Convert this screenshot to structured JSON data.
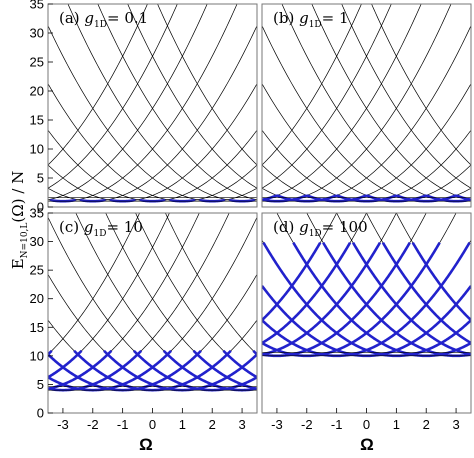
{
  "figure": {
    "ylabel_main": "E",
    "ylabel_sub": "N=10,L",
    "ylabel_rest": "(Ω) / N",
    "xlabel": "Ω",
    "colors": {
      "black": "#000000",
      "blue": "#2222cc",
      "frame": "#777777"
    }
  },
  "chart_data": [
    {
      "type": "line",
      "panel": "a",
      "label_prefix": "(a)",
      "label_symbol": "g",
      "label_sub": "1D",
      "label_value": "= 0.1",
      "xlim": [
        -3.5,
        3.5
      ],
      "ylim": [
        0,
        35
      ],
      "x_ticks": [],
      "y_ticks": [
        "0",
        "5",
        "10",
        "15",
        "20",
        "25",
        "30",
        "35"
      ],
      "curves": "E(Ω) = (Ω - k)^2 + 1, k = -6 … 6 (integers)",
      "blue_band": [
        0,
        1.2
      ]
    },
    {
      "type": "line",
      "panel": "b",
      "label_prefix": "(b)",
      "label_symbol": "g",
      "label_sub": "1D",
      "label_value": "= 1",
      "xlim": [
        -3.5,
        3.5
      ],
      "ylim": [
        0,
        35
      ],
      "x_ticks": [],
      "y_ticks": [],
      "curves": "E(Ω) = (Ω - k)^2 + 1, k = -6 … 6 (integers)",
      "blue_band": [
        0,
        2
      ]
    },
    {
      "type": "line",
      "panel": "c",
      "label_prefix": "(c)",
      "label_symbol": "g",
      "label_sub": "1D",
      "label_value": "= 10",
      "xlim": [
        -3.5,
        3.5
      ],
      "ylim": [
        0,
        35
      ],
      "x_ticks": [
        "-3",
        "-2",
        "-1",
        "0",
        "1",
        "2",
        "3"
      ],
      "y_ticks": [
        "0",
        "5",
        "10",
        "15",
        "20",
        "25",
        "30",
        "35"
      ],
      "curves": "E(Ω) = (Ω - k)^2 + 4, k = -6 … 6 (integers)",
      "blue_band": [
        4,
        11
      ]
    },
    {
      "type": "line",
      "panel": "d",
      "label_prefix": "(d)",
      "label_symbol": "g",
      "label_sub": "1D",
      "label_value": "= 100",
      "xlim": [
        -3.5,
        3.5
      ],
      "ylim": [
        0,
        35
      ],
      "x_ticks": [
        "-3",
        "-2",
        "-1",
        "0",
        "1",
        "2",
        "3"
      ],
      "y_ticks": [],
      "curves": "E(Ω) = (Ω - k)^2 + 10, k = -6 … 6 (integers)",
      "blue_band": [
        10,
        30
      ]
    }
  ]
}
